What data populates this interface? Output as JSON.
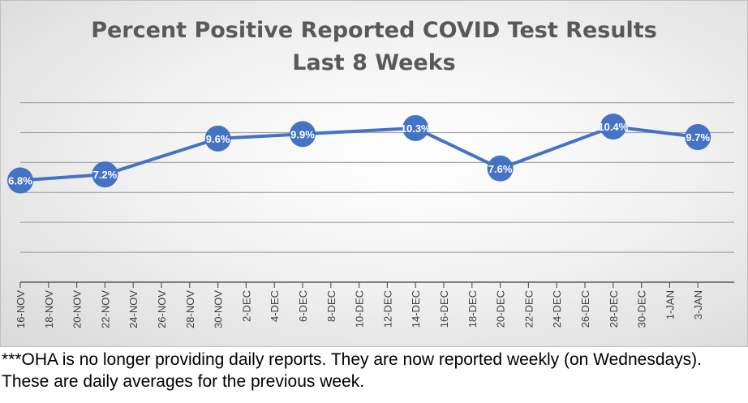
{
  "chart_data": {
    "type": "line",
    "title": "Percent Positive Reported COVID Test Results",
    "subtitle": "Last 8 Weeks",
    "categories": [
      "16-NOV",
      "18-NOV",
      "20-NOV",
      "22-NOV",
      "24-NOV",
      "26-NOV",
      "28-NOV",
      "30-NOV",
      "2-DEC",
      "4-DEC",
      "6-DEC",
      "8-DEC",
      "10-DEC",
      "12-DEC",
      "14-DEC",
      "16-DEC",
      "18-DEC",
      "20-DEC",
      "22-DEC",
      "24-DEC",
      "26-DEC",
      "28-DEC",
      "30-DEC",
      "1-JAN",
      "3-JAN"
    ],
    "points": [
      {
        "x": "16-NOV",
        "y": 6.8,
        "label": "6.8%"
      },
      {
        "x": "22-NOV",
        "y": 7.2,
        "label": "7.2%"
      },
      {
        "x": "30-NOV",
        "y": 9.6,
        "label": "9.6%"
      },
      {
        "x": "6-DEC",
        "y": 9.9,
        "label": "9.9%"
      },
      {
        "x": "14-DEC",
        "y": 10.3,
        "label": "10.3%"
      },
      {
        "x": "20-DEC",
        "y": 7.6,
        "label": "7.6%"
      },
      {
        "x": "28-DEC",
        "y": 10.4,
        "label": "10.4%"
      },
      {
        "x": "3-JAN",
        "y": 9.7,
        "label": "9.7%"
      }
    ],
    "ylim": [
      0,
      14
    ],
    "gridlines": [
      2,
      4,
      6,
      8,
      10,
      12
    ],
    "grid": true,
    "line_color": "#4472c4",
    "label_color": "#ffffff"
  },
  "footnote": "***OHA is no longer providing daily reports.  They are now reported weekly (on Wednesdays). These are daily averages for the previous week."
}
